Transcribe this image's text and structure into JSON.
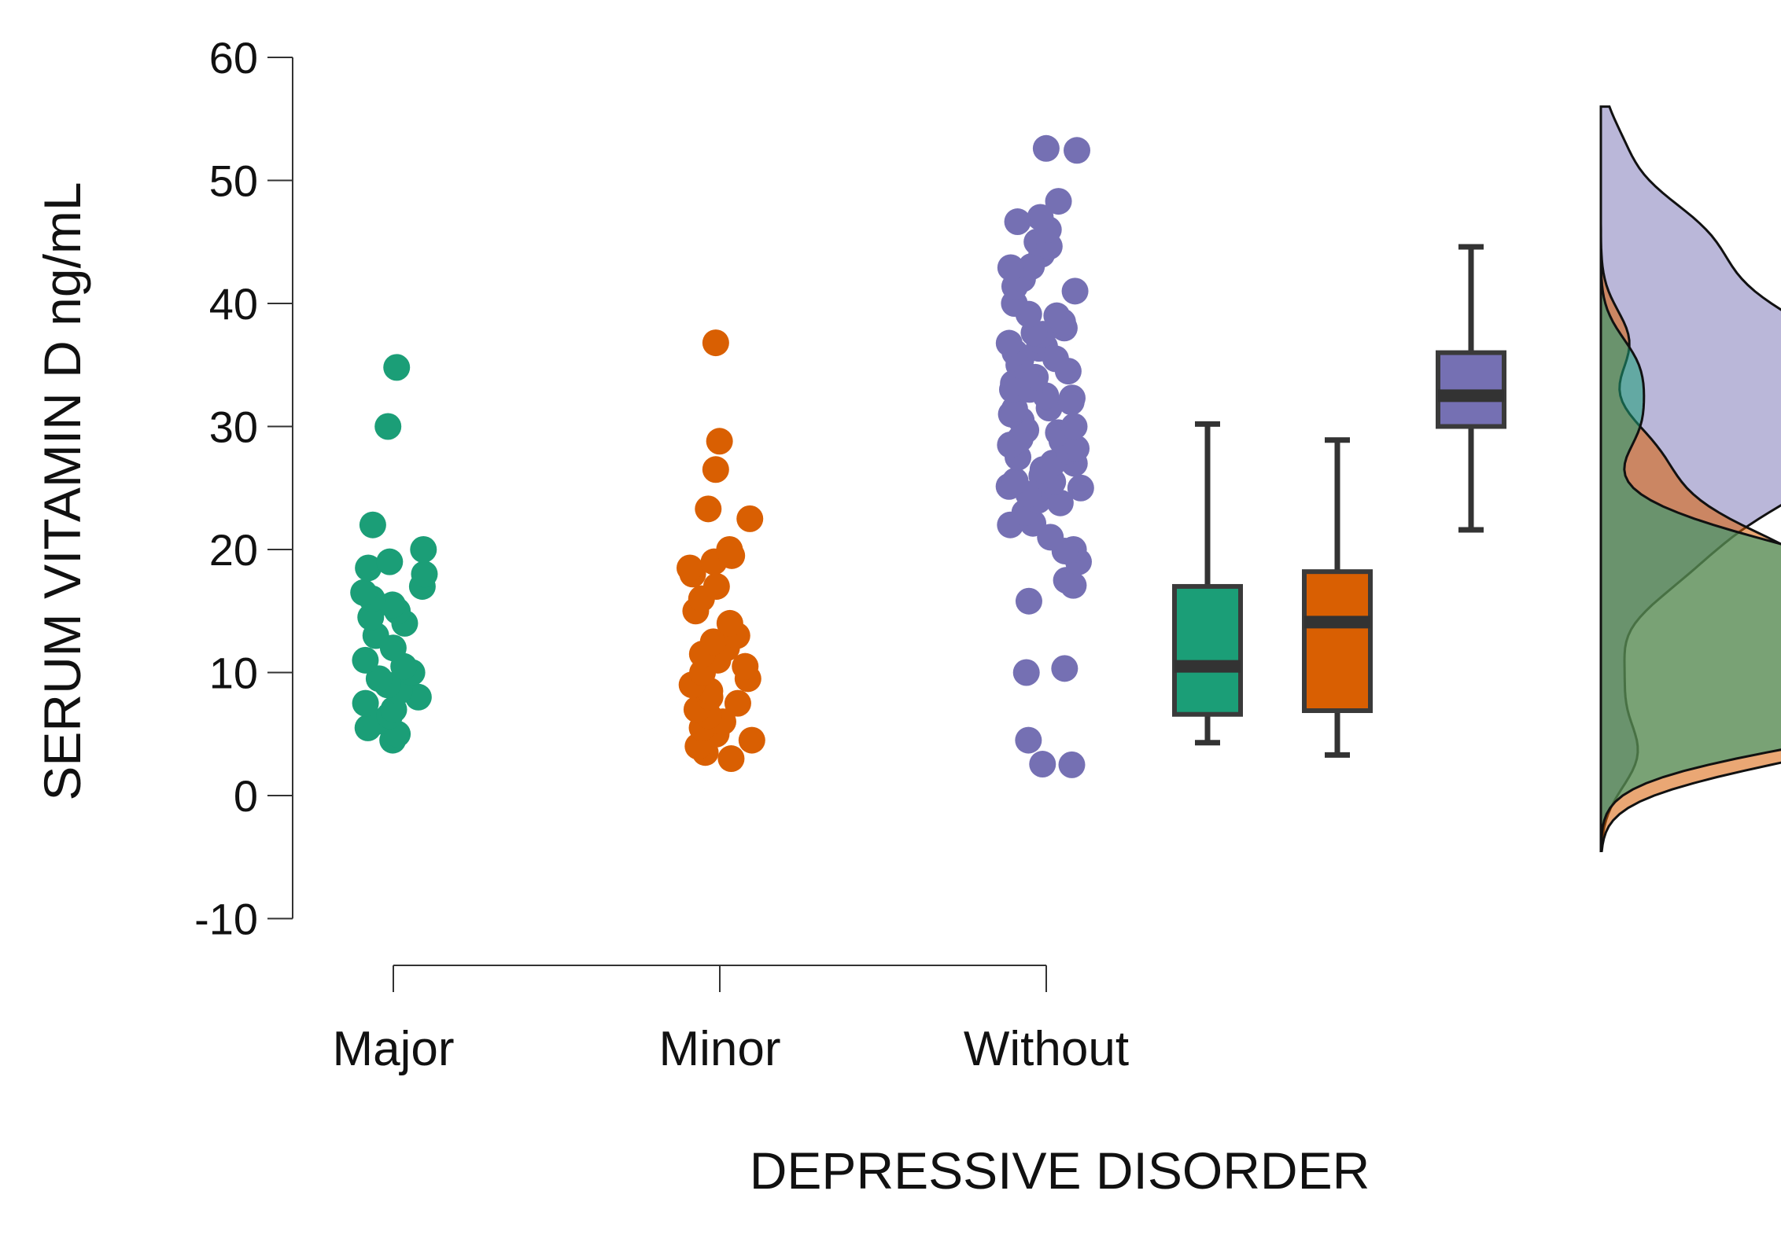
{
  "chart_data": {
    "type": "raincloud",
    "title": "",
    "xlabel": "DEPRESSIVE DISORDER",
    "ylabel": "SERUM VITAMIN D ng/mL",
    "ylim": [
      -10,
      60
    ],
    "yticks": [
      -10,
      0,
      10,
      20,
      30,
      40,
      50,
      60
    ],
    "categories": [
      "Major",
      "Minor",
      "Without"
    ],
    "colors": {
      "Major": "#1b9e77",
      "Minor": "#d95f02",
      "Without": "#7570b3"
    },
    "boxplots": [
      {
        "name": "Major",
        "whisker_low": 4.3,
        "q1": 6.6,
        "median": 10.5,
        "q3": 17.0,
        "whisker_high": 30.2
      },
      {
        "name": "Minor",
        "whisker_low": 3.3,
        "q1": 6.9,
        "median": 14.1,
        "q3": 18.2,
        "whisker_high": 28.9
      },
      {
        "name": "Without",
        "whisker_low": 21.6,
        "q1": 30.0,
        "median": 32.5,
        "q3": 36.0,
        "whisker_high": 44.6
      }
    ],
    "density_note": "half-violin density curves for each group drawn at the right edge",
    "points": {
      "Major": [
        4.5,
        5.0,
        5.5,
        6.0,
        6.5,
        7.0,
        7.5,
        8.0,
        8.5,
        9.0,
        9.5,
        10.0,
        10.5,
        11.0,
        12.0,
        13.0,
        14.0,
        14.5,
        15.0,
        15.5,
        16.0,
        16.5,
        17.0,
        18.0,
        18.5,
        19.0,
        20.0,
        22.0,
        30.0,
        34.8
      ],
      "Minor": [
        3.0,
        3.5,
        4.0,
        4.5,
        5.0,
        5.5,
        6.0,
        6.5,
        7.0,
        7.5,
        8.0,
        8.5,
        9.0,
        9.5,
        10.0,
        10.5,
        11.0,
        11.5,
        12.0,
        12.5,
        13.0,
        14.0,
        15.0,
        16.0,
        17.0,
        18.0,
        18.5,
        19.0,
        19.5,
        20.0,
        22.5,
        23.3,
        26.5,
        28.8,
        36.8
      ],
      "Without": [
        2.5,
        4.5,
        10.0,
        15.8,
        17.5,
        19.0,
        20.0,
        21.0,
        22.0,
        23.0,
        24.0,
        24.5,
        25.0,
        25.5,
        26.0,
        26.5,
        27.0,
        27.5,
        28.0,
        28.5,
        29.0,
        29.5,
        30.0,
        30.5,
        31.0,
        31.5,
        32.0,
        32.5,
        33.0,
        33.5,
        34.0,
        34.5,
        35.0,
        35.5,
        36.0,
        36.5,
        37.0,
        37.5,
        38.0,
        38.5,
        39.0,
        40.0,
        41.0,
        42.0,
        43.0,
        44.0,
        45.0,
        46.0,
        47.0,
        48.3,
        52.6
      ]
    }
  }
}
